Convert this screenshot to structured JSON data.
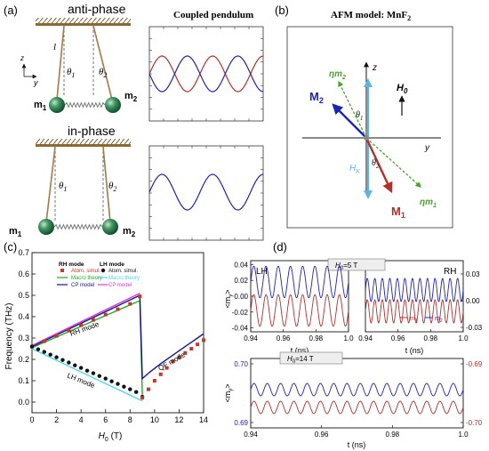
{
  "panel_a": {
    "label": "(a)",
    "anti_phase_title": "anti-phase",
    "in_phase_title": "in-phase",
    "coupled_title": "Coupled pendulum",
    "length_label": "l",
    "theta1": "θ",
    "theta1_sub": "1",
    "theta2": "θ",
    "theta2_sub": "2",
    "m1": "m",
    "m1_sub": "1",
    "m2": "m",
    "m2_sub": "2",
    "axis_z": "z",
    "axis_y": "y",
    "colors": {
      "red": "#b2302a",
      "blue": "#1f22b8",
      "ball": "#2e7d4f"
    }
  },
  "panel_b": {
    "label": "(b)",
    "title": "AFM model: MnF",
    "title_sub": "2",
    "axis_z": "z",
    "axis_y": "y",
    "H0": "H",
    "H0_sub": "0",
    "HK": "H",
    "HK_sub": "K",
    "M2": "M",
    "M2_sub": "2",
    "M1": "M",
    "M1_sub": "1",
    "eta_m2": "ηm",
    "eta_m2_sub": "2",
    "eta_m1": "ηm",
    "eta_m1_sub": "1",
    "theta1": "θ",
    "theta1_sub": "1",
    "theta2": "θ",
    "theta2_sub": "2",
    "colors": {
      "M1": "#b2302a",
      "M2": "#1f22b8",
      "eta": "#4aa02c",
      "HK": "#5fb4e6"
    }
  },
  "panel_c": {
    "label": "(c)",
    "ylabel": "Frequency (THz)",
    "xlabel": "H",
    "xlabel_sub": "0",
    "xlabel_unit": " (T)",
    "rh_mode_label": "RH mode",
    "lh_mode_label": "LH mode",
    "qf_mode_label": "QF mode",
    "legend": {
      "rh_header": "RH mode",
      "lh_header": "LH mode",
      "atom": "Atom. simul.",
      "macro": "Macro theory",
      "cp": "CP model"
    },
    "colors": {
      "atom_rh": "#c0392b",
      "atom_lh": "#111111",
      "macro_rh": "#22aa22",
      "macro_lh": "#4fd6e8",
      "cp_rh": "#14148c",
      "cp_lh": "#d93ad9"
    }
  },
  "panel_d": {
    "label": "(d)",
    "lh_label": "LH",
    "rh_label": "RH",
    "h5_label": "H",
    "h5_sub": "0",
    "h5_value": "=5 T",
    "h14_label": "H",
    "h14_sub": "0",
    "h14_value": "=14 T",
    "ylabel": "<m",
    "ylabel_sub": "y",
    "ylabel_close": ">",
    "xlabel": "t (ns)",
    "legend_m1": "m",
    "legend_m1_sub": "1",
    "legend_m2": "m",
    "legend_m2_sub": "2",
    "colors": {
      "m1": "#b2302a",
      "m2": "#1f22b8",
      "right_axis": "#b2302a",
      "left_axis_bottom": "#1f22b8"
    }
  },
  "chart_data": [
    {
      "type": "line",
      "panel": "c",
      "xlabel": "H0 (T)",
      "ylabel": "Frequency (THz)",
      "xlim": [
        0,
        14
      ],
      "ylim": [
        -0.05,
        0.7
      ],
      "xticks": [
        0,
        2,
        4,
        6,
        8,
        10,
        12,
        14
      ],
      "yticks": [
        0.0,
        0.1,
        0.2,
        0.3,
        0.4,
        0.5,
        0.6,
        0.7
      ],
      "grid": false,
      "legend_position": "top-left",
      "series": [
        {
          "name": "RH mode Atom. simul.",
          "marker": "square",
          "x": [
            0,
            1,
            2,
            3,
            4,
            5,
            6,
            7,
            8,
            8.8
          ],
          "y": [
            0.26,
            0.285,
            0.31,
            0.335,
            0.36,
            0.385,
            0.41,
            0.435,
            0.46,
            0.495
          ]
        },
        {
          "name": "LH mode Atom. simul.",
          "marker": "circle",
          "x": [
            0,
            0.5,
            1,
            1.5,
            2,
            2.5,
            3,
            3.5,
            4,
            4.5,
            5,
            5.5,
            6,
            6.5,
            7,
            7.5,
            8,
            8.5,
            9.0
          ],
          "y": [
            0.26,
            0.247,
            0.235,
            0.222,
            0.21,
            0.197,
            0.185,
            0.172,
            0.16,
            0.147,
            0.135,
            0.122,
            0.11,
            0.097,
            0.085,
            0.072,
            0.06,
            0.047,
            0.025
          ]
        },
        {
          "name": "QF mode Atom. simul.",
          "marker": "square",
          "x": [
            9.0,
            9.5,
            10,
            10.5,
            11,
            11.5,
            12,
            12.5,
            13,
            13.5,
            14
          ],
          "y": [
            0.02,
            0.06,
            0.1,
            0.13,
            0.16,
            0.19,
            0.21,
            0.23,
            0.25,
            0.27,
            0.29
          ]
        },
        {
          "name": "RH mode Macro theory",
          "x": [
            0,
            8.8,
            9.0
          ],
          "y": [
            0.255,
            0.475,
            0.035
          ]
        },
        {
          "name": "LH mode Macro theory",
          "x": [
            0,
            9.0
          ],
          "y": [
            0.25,
            0.005
          ]
        },
        {
          "name": "RH mode CP model",
          "x": [
            0,
            8.8,
            9.0,
            9.6,
            10.5,
            11.5,
            12.5,
            13.5,
            14
          ],
          "y": [
            0.26,
            0.5,
            0.11,
            0.14,
            0.18,
            0.22,
            0.26,
            0.3,
            0.32
          ]
        },
        {
          "name": "LH mode CP model",
          "x": [
            0,
            8.8
          ],
          "y": [
            0.265,
            0.51
          ]
        }
      ]
    },
    {
      "type": "line",
      "panel": "d-top-left",
      "title": "LH",
      "xlabel": "t (ns)",
      "ylabel": "<my>",
      "xlim": [
        0.94,
        1.0
      ],
      "ylim": [
        -0.045,
        0.045
      ],
      "xticks": [
        0.94,
        0.96,
        0.98,
        1.0
      ],
      "yticks": [
        0.04,
        0.02,
        0.0,
        -0.02,
        -0.04
      ],
      "series": [
        {
          "name": "m1",
          "amplitude": 0.02,
          "offset": -0.018,
          "cycles": 8
        },
        {
          "name": "m2",
          "amplitude": 0.02,
          "offset": 0.018,
          "cycles": 8
        }
      ]
    },
    {
      "type": "line",
      "panel": "d-top-right",
      "title": "RH",
      "xlabel": "t (ns)",
      "xlim": [
        0.94,
        1.0
      ],
      "ylim": [
        -0.035,
        0.045
      ],
      "xticks": [
        0.94,
        0.96,
        0.98,
        1.0
      ],
      "yticks": [
        0.03,
        0.0,
        -0.03
      ],
      "series": [
        {
          "name": "m1",
          "amplitude": 0.013,
          "offset": -0.012,
          "cycles": 13
        },
        {
          "name": "m2",
          "amplitude": 0.013,
          "offset": 0.012,
          "cycles": 13
        }
      ]
    },
    {
      "type": "line",
      "panel": "d-bottom",
      "xlabel": "t (ns)",
      "ylabel": "<my>",
      "xlim": [
        0.94,
        1.0
      ],
      "ylim_left": [
        0.69,
        0.7
      ],
      "ylim_right": [
        -0.7,
        -0.69
      ],
      "xticks": [
        0.94,
        0.96,
        0.98,
        1.0
      ],
      "yticks_left": [
        0.7,
        0.69
      ],
      "yticks_right": [
        -0.69,
        -0.7
      ],
      "series": [
        {
          "name": "m1",
          "axis": "right",
          "cycles": 16
        },
        {
          "name": "m2",
          "axis": "left",
          "cycles": 16
        }
      ]
    }
  ]
}
